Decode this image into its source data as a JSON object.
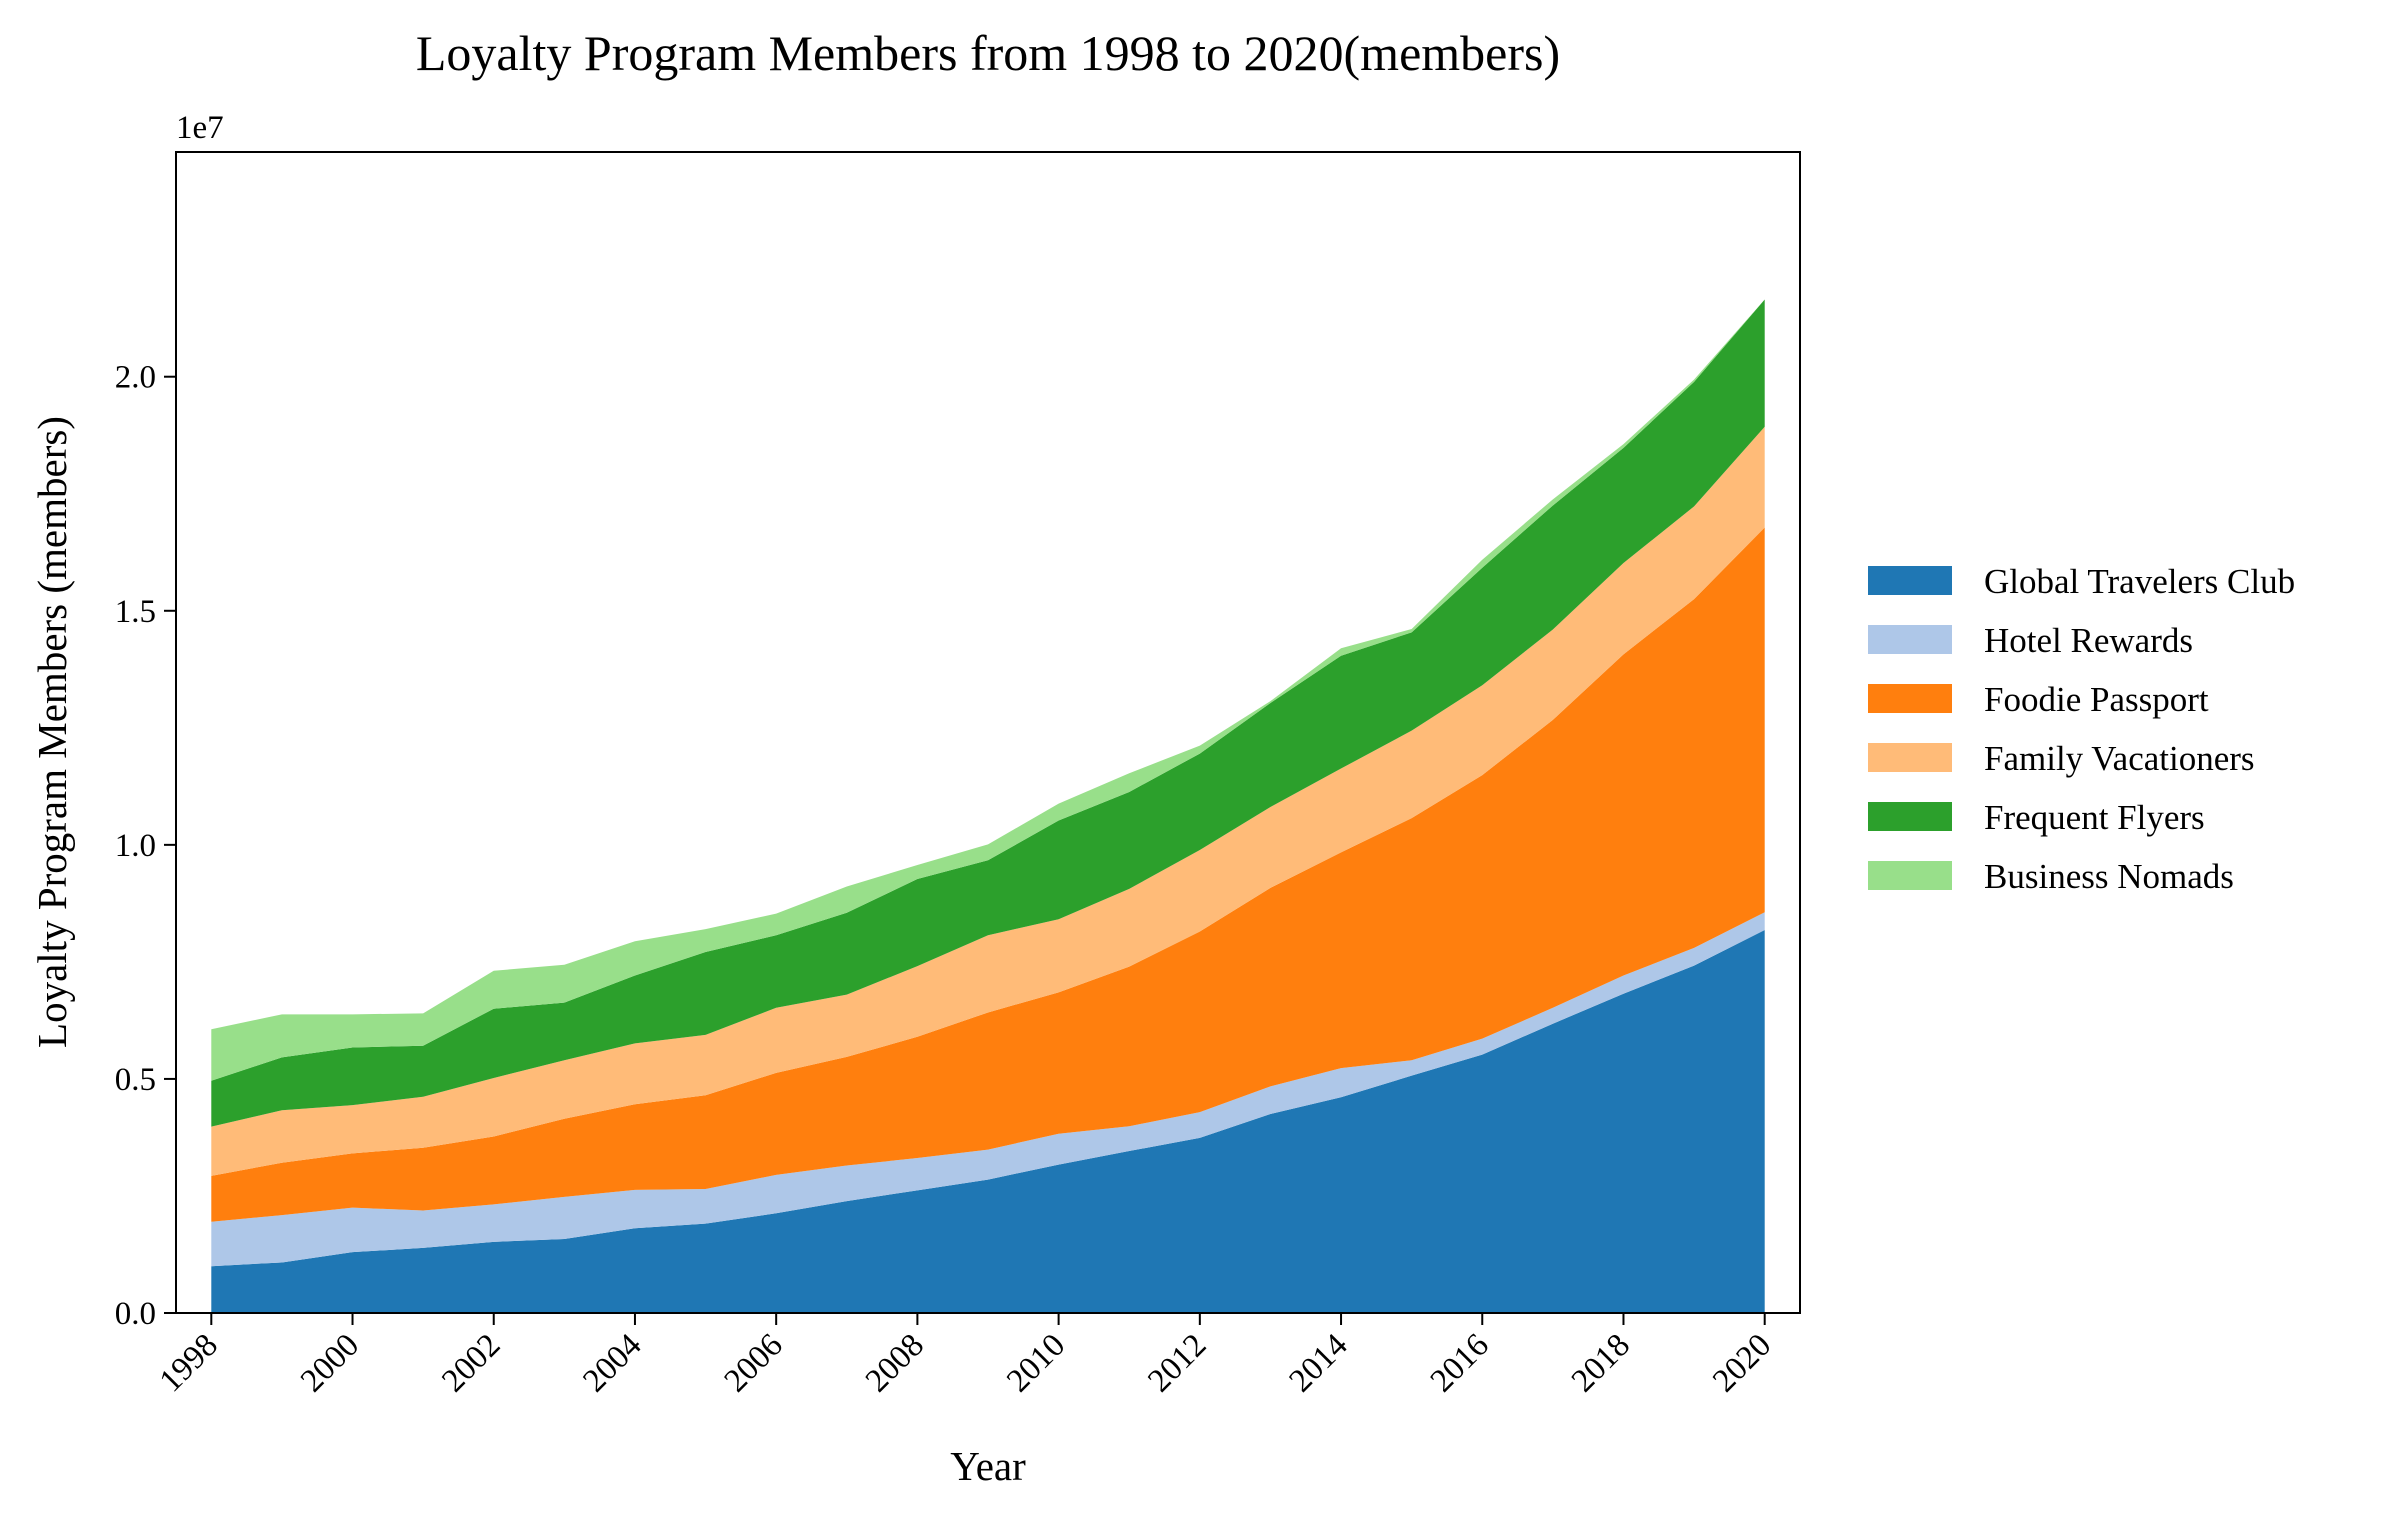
{
  "chart_data": {
    "type": "area",
    "stacked": true,
    "title": "Loyalty Program Members from 1998 to 2020(members)",
    "xlabel": "Year",
    "ylabel": "Loyalty Program Members (members)",
    "y_offset_label": "1e7",
    "x": [
      1998,
      1999,
      2000,
      2001,
      2002,
      2003,
      2004,
      2005,
      2006,
      2007,
      2008,
      2009,
      2010,
      2011,
      2012,
      2013,
      2014,
      2015,
      2016,
      2017,
      2018,
      2019,
      2020
    ],
    "xticks": [
      "1998",
      "2000",
      "2002",
      "2004",
      "2006",
      "2008",
      "2010",
      "2012",
      "2014",
      "2016",
      "2018",
      "2020"
    ],
    "yticks": [
      "0.0",
      "0.5",
      "1.0",
      "1.5",
      "2.0"
    ],
    "ylim": [
      0,
      24800000
    ],
    "xlim": [
      1997.5,
      2020.5
    ],
    "grid": false,
    "legend_position": "right",
    "series": [
      {
        "name": "Global Travelers Club",
        "color": "#1f77b4",
        "values": [
          1000000,
          1080000,
          1300000,
          1390000,
          1520000,
          1580000,
          1810000,
          1910000,
          2130000,
          2390000,
          2620000,
          2850000,
          3170000,
          3460000,
          3740000,
          4250000,
          4610000,
          5070000,
          5520000,
          6180000,
          6820000,
          7420000,
          8180000
        ]
      },
      {
        "name": "Hotel Rewards",
        "color": "#aec7e8",
        "values": [
          950000,
          1010000,
          950000,
          800000,
          800000,
          900000,
          820000,
          740000,
          820000,
          760000,
          690000,
          640000,
          660000,
          530000,
          550000,
          590000,
          620000,
          330000,
          340000,
          340000,
          390000,
          380000,
          380000
        ]
      },
      {
        "name": "Foodie Passport",
        "color": "#ff7f0e",
        "values": [
          980000,
          1120000,
          1160000,
          1340000,
          1450000,
          1670000,
          1830000,
          2000000,
          2180000,
          2320000,
          2590000,
          2930000,
          3020000,
          3410000,
          3860000,
          4240000,
          4610000,
          5170000,
          5630000,
          6150000,
          6860000,
          7450000,
          8220000
        ]
      },
      {
        "name": "Family Vacationers",
        "color": "#ffbb78",
        "values": [
          1050000,
          1120000,
          1030000,
          1090000,
          1250000,
          1250000,
          1300000,
          1290000,
          1390000,
          1330000,
          1510000,
          1650000,
          1560000,
          1660000,
          1740000,
          1730000,
          1790000,
          1870000,
          1920000,
          1930000,
          1950000,
          1980000,
          2150000
        ]
      },
      {
        "name": "Frequent Flyers",
        "color": "#2ca02c",
        "values": [
          980000,
          1130000,
          1230000,
          1090000,
          1480000,
          1230000,
          1450000,
          1770000,
          1550000,
          1750000,
          1860000,
          1600000,
          2110000,
          2070000,
          2060000,
          2220000,
          2410000,
          2100000,
          2510000,
          2650000,
          2460000,
          2660000,
          2720000
        ]
      },
      {
        "name": "Business Nomads",
        "color": "#98df8a",
        "values": [
          1100000,
          920000,
          710000,
          690000,
          810000,
          810000,
          730000,
          490000,
          460000,
          560000,
          300000,
          340000,
          360000,
          400000,
          170000,
          40000,
          160000,
          70000,
          170000,
          130000,
          80000,
          50000,
          0
        ]
      }
    ]
  }
}
